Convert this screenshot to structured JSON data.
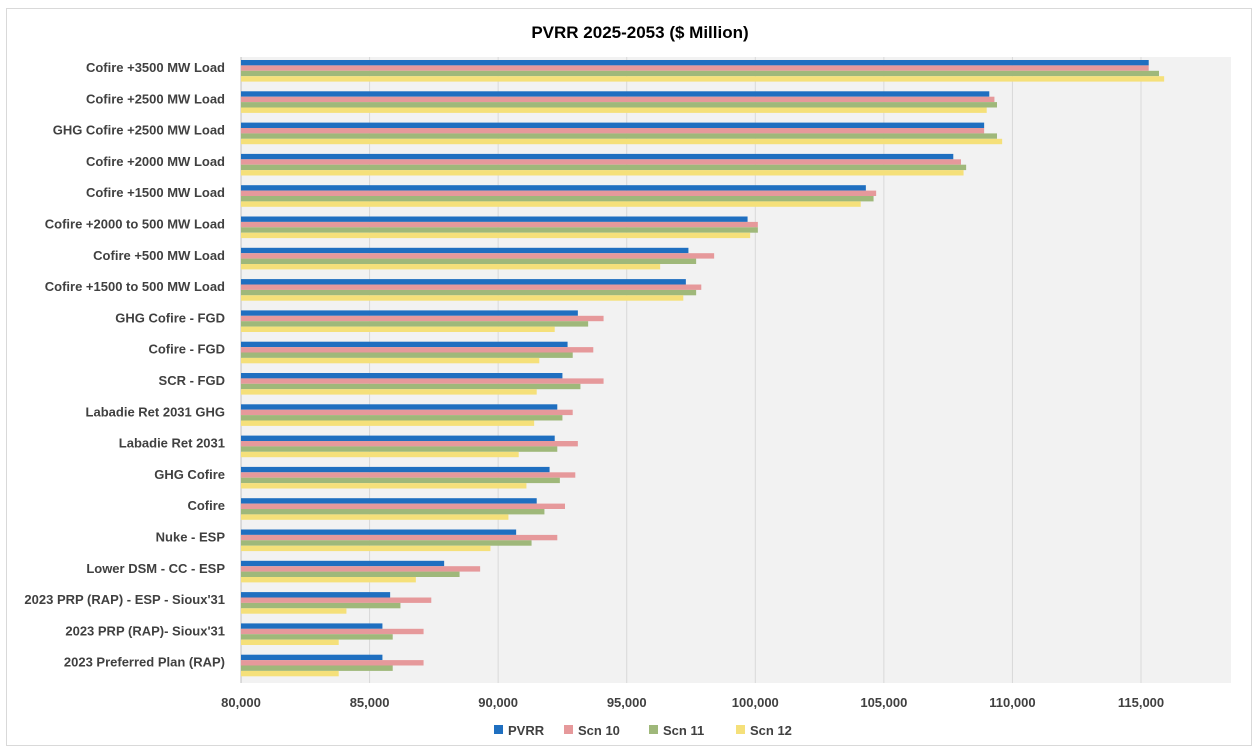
{
  "chart_data": {
    "type": "bar",
    "orientation": "horizontal",
    "title": "PVRR 2025-2053 ($ Million)",
    "xlabel": "",
    "ylabel": "",
    "xlim": [
      80000,
      118500
    ],
    "x_ticks": [
      80000,
      85000,
      90000,
      95000,
      100000,
      105000,
      110000,
      115000
    ],
    "x_tick_labels": [
      "80,000",
      "85,000",
      "90,000",
      "95,000",
      "100,000",
      "105,000",
      "110,000",
      "115,000"
    ],
    "grid": true,
    "legend_position": "bottom",
    "categories": [
      "Cofire +3500 MW Load",
      "Cofire +2500 MW Load",
      "GHG Cofire +2500 MW Load",
      "Cofire +2000 MW Load",
      "Cofire +1500 MW Load",
      "Cofire +2000 to 500 MW Load",
      "Cofire +500 MW Load",
      "Cofire +1500 to 500 MW Load",
      "GHG Cofire - FGD",
      "Cofire - FGD",
      "SCR - FGD",
      "Labadie Ret 2031 GHG",
      "Labadie Ret 2031",
      "GHG Cofire",
      "Cofire",
      "Nuke - ESP",
      "Lower DSM - CC - ESP",
      "2023 PRP (RAP) - ESP - Sioux'31",
      "2023 PRP (RAP)- Sioux'31",
      "2023 Preferred Plan (RAP)"
    ],
    "series": [
      {
        "name": "PVRR",
        "color": "#1f6fc0",
        "values": [
          115300,
          109100,
          108900,
          107700,
          104300,
          99700,
          97400,
          97300,
          93100,
          92700,
          92500,
          92300,
          92200,
          92000,
          91500,
          90700,
          87900,
          85800,
          85500,
          85500
        ]
      },
      {
        "name": "Scn 10",
        "color": "#e6999b",
        "values": [
          115300,
          109300,
          108900,
          108000,
          104700,
          100100,
          98400,
          97900,
          94100,
          93700,
          94100,
          92900,
          93100,
          93000,
          92600,
          92300,
          89300,
          87400,
          87100,
          87100
        ]
      },
      {
        "name": "Scn 11",
        "color": "#9fb87a",
        "values": [
          115700,
          109400,
          109400,
          108200,
          104600,
          100100,
          97700,
          97700,
          93500,
          92900,
          93200,
          92500,
          92300,
          92400,
          91800,
          91300,
          88500,
          86200,
          85900,
          85900
        ]
      },
      {
        "name": "Scn 12",
        "color": "#f5e07a",
        "values": [
          115900,
          109000,
          109600,
          108100,
          104100,
          99800,
          96300,
          97200,
          92200,
          91600,
          91500,
          91400,
          90800,
          91100,
          90400,
          89700,
          86800,
          84100,
          83800,
          83800
        ]
      }
    ]
  }
}
